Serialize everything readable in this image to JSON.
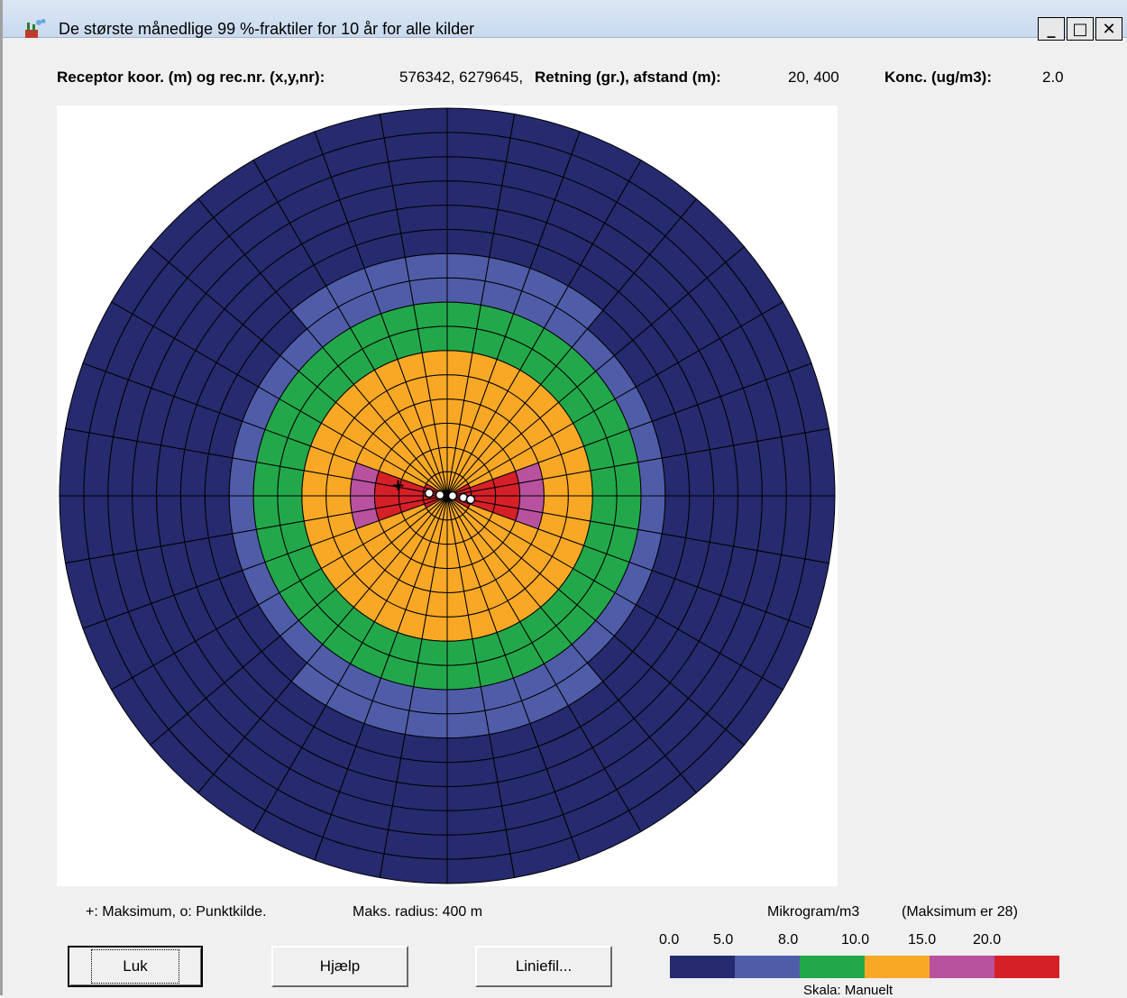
{
  "window": {
    "title": "De største månedlige 99 %-fraktiler for 10 år for alle kilder",
    "min_glyph": "_",
    "max_glyph": "□",
    "close_glyph": "✕",
    "app_icon": "factory-chimney-icon"
  },
  "info": {
    "receptor_label": "Receptor koor. (m) og rec.nr. (x,y,nr):",
    "receptor_value": "576342, 6279645,",
    "direction_label": "Retning (gr.), afstand (m):",
    "direction_value": "20, 400",
    "conc_label": "Konc. (ug/m3):",
    "conc_value": "2.0"
  },
  "plot": {
    "marker_legend": "+:  Maksimum,  o:  Punktkilde.",
    "max_radius": "Maks. radius:  400 m",
    "unit_label": "Mikrogram/m3",
    "maximum_note": "(Maksimum er  28)",
    "scale_note": "Skala:  Manuelt",
    "scale_ticks": [
      "0.0",
      "5.0",
      "8.0",
      "10.0",
      "15.0",
      "20.0"
    ],
    "scale_colors": [
      "#262a6e",
      "#4f5ca8",
      "#22a84a",
      "#f9a825",
      "#b8529e",
      "#d62027"
    ],
    "background_color": "#262a6e",
    "grid_color": "#000000"
  },
  "buttons": {
    "luk": "Luk",
    "hjaelp": "Hjælp",
    "liniefil": "Liniefil..."
  }
}
